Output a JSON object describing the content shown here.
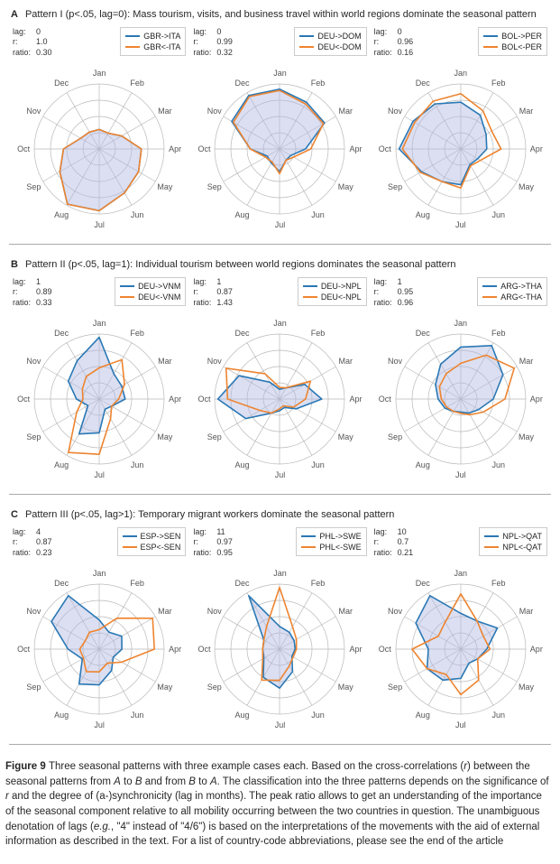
{
  "colors": {
    "series_fwd": "#2a78b5",
    "series_rev": "#ee8430",
    "fill": "rgba(175,185,225,0.45)",
    "grid": "#b9b9b9",
    "spoke": "#b9b9b9",
    "tick_text": "#555555",
    "text": "#262626"
  },
  "months": [
    "Jan",
    "Feb",
    "Mar",
    "Apr",
    "May",
    "Jun",
    "Jul",
    "Aug",
    "Sep",
    "Oct",
    "Nov",
    "Dec"
  ],
  "chart": {
    "outer_radius": 72,
    "label_radius": 84,
    "n_rings": 4,
    "line_width": 1.6
  },
  "rows": [
    {
      "letter": "A",
      "title": "Pattern I (p<.05, lag=0): Mass tourism, visits, and business travel within world regions dominate the seasonal pattern",
      "cells": [
        {
          "stats": {
            "lag": "0",
            "r": "1.0",
            "ratio": "0.30"
          },
          "legend": {
            "fwd": "GBR->ITA",
            "rev": "GBR<-ITA"
          },
          "fwd": [
            0.3,
            0.28,
            0.4,
            0.65,
            0.7,
            0.78,
            0.95,
            0.98,
            0.7,
            0.55,
            0.33,
            0.3
          ],
          "rev": [
            0.3,
            0.28,
            0.4,
            0.65,
            0.7,
            0.78,
            0.95,
            0.98,
            0.7,
            0.55,
            0.33,
            0.3
          ]
        },
        {
          "stats": {
            "lag": "0",
            "r": "0.99",
            "ratio": "0.32"
          },
          "legend": {
            "fwd": "DEU->DOM",
            "rev": "DEU<-DOM"
          },
          "fwd": [
            0.92,
            0.83,
            0.8,
            0.4,
            0.2,
            0.2,
            0.35,
            0.25,
            0.22,
            0.45,
            0.85,
            0.95
          ],
          "rev": [
            0.9,
            0.8,
            0.78,
            0.48,
            0.25,
            0.2,
            0.38,
            0.23,
            0.25,
            0.45,
            0.82,
            0.93
          ]
        },
        {
          "stats": {
            "lag": "0",
            "r": "0.96",
            "ratio": "0.16"
          },
          "legend": {
            "fwd": "BOL->PER",
            "rev": "BOL<-PER"
          },
          "fwd": [
            0.72,
            0.6,
            0.45,
            0.4,
            0.3,
            0.28,
            0.55,
            0.58,
            0.7,
            0.95,
            0.85,
            0.8
          ],
          "rev": [
            0.85,
            0.68,
            0.55,
            0.62,
            0.35,
            0.3,
            0.6,
            0.58,
            0.72,
            0.9,
            0.82,
            0.85
          ]
        }
      ]
    },
    {
      "letter": "B",
      "title": "Pattern II (p<.05, lag=1): Individual tourism between world regions dominates the seasonal pattern",
      "cells": [
        {
          "stats": {
            "lag": "1",
            "r": "0.89",
            "ratio": "0.33"
          },
          "legend": {
            "fwd": "DEU->VNM",
            "rev": "DEU<-VNM"
          },
          "fwd": [
            0.95,
            0.45,
            0.4,
            0.4,
            0.22,
            0.18,
            0.52,
            0.62,
            0.2,
            0.35,
            0.55,
            0.68
          ],
          "rev": [
            0.48,
            0.7,
            0.45,
            0.3,
            0.22,
            0.35,
            0.85,
            0.95,
            0.4,
            0.25,
            0.3,
            0.4
          ]
        },
        {
          "stats": {
            "lag": "1",
            "r": "0.87",
            "ratio": "1.43"
          },
          "legend": {
            "fwd": "DEU->NPL",
            "rev": "DEU<-NPL"
          },
          "fwd": [
            0.15,
            0.2,
            0.45,
            0.65,
            0.3,
            0.15,
            0.18,
            0.25,
            0.6,
            0.95,
            0.72,
            0.3
          ],
          "rev": [
            0.18,
            0.2,
            0.55,
            0.4,
            0.25,
            0.12,
            0.15,
            0.25,
            0.35,
            0.8,
            0.95,
            0.45
          ]
        },
        {
          "stats": {
            "lag": "1",
            "r": "0.95",
            "ratio": "0.96"
          },
          "legend": {
            "fwd": "ARG->THA",
            "rev": "ARG<-THA"
          },
          "fwd": [
            0.8,
            0.95,
            0.75,
            0.5,
            0.32,
            0.25,
            0.2,
            0.22,
            0.28,
            0.35,
            0.45,
            0.62
          ],
          "rev": [
            0.55,
            0.78,
            0.95,
            0.68,
            0.4,
            0.28,
            0.22,
            0.22,
            0.25,
            0.3,
            0.38,
            0.45
          ]
        }
      ]
    },
    {
      "letter": "C",
      "title": "Pattern III (p<.05, lag>1): Temporary migrant workers dominate the seasonal pattern",
      "cells": [
        {
          "stats": {
            "lag": "4",
            "r": "0.87",
            "ratio": "0.23"
          },
          "legend": {
            "fwd": "ESP->SEN",
            "rev": "ESP<-SEN"
          },
          "fwd": [
            0.45,
            0.3,
            0.4,
            0.35,
            0.25,
            0.38,
            0.55,
            0.62,
            0.3,
            0.48,
            0.85,
            0.95
          ],
          "rev": [
            0.3,
            0.55,
            0.95,
            0.85,
            0.4,
            0.25,
            0.35,
            0.4,
            0.28,
            0.3,
            0.25,
            0.3
          ]
        },
        {
          "stats": {
            "lag": "11",
            "r": "0.97",
            "ratio": "0.95"
          },
          "legend": {
            "fwd": "PHL->SWE",
            "rev": "PHL<-SWE"
          },
          "fwd": [
            0.35,
            0.3,
            0.26,
            0.24,
            0.22,
            0.4,
            0.6,
            0.5,
            0.28,
            0.26,
            0.28,
            0.95
          ],
          "rev": [
            0.95,
            0.4,
            0.3,
            0.26,
            0.24,
            0.3,
            0.48,
            0.55,
            0.3,
            0.26,
            0.28,
            0.4
          ]
        },
        {
          "stats": {
            "lag": "10",
            "r": "0.7",
            "ratio": "0.21"
          },
          "legend": {
            "fwd": "NPL->QAT",
            "rev": "NPL<-QAT"
          },
          "fwd": [
            0.55,
            0.5,
            0.65,
            0.4,
            0.3,
            0.25,
            0.45,
            0.55,
            0.6,
            0.5,
            0.8,
            0.95
          ],
          "rev": [
            0.85,
            0.5,
            0.4,
            0.45,
            0.3,
            0.55,
            0.7,
            0.45,
            0.6,
            0.75,
            0.4,
            0.48
          ]
        }
      ]
    }
  ],
  "caption": {
    "label": "Figure 9",
    "text": "Three seasonal patterns with three example cases each. Based on the cross-correlations (r) between the seasonal patterns from A to B and from B to A. The classification into the three patterns depends on the significance of r and the degree of (a-)synchronicity (lag in months). The peak ratio allows to get an understanding of the importance of the seasonal component relative to all mobility occurring between the two countries in question. The unambiguous denotation of lags (e.g., \"4\" instead of \"4/6\") is based on the interpretations of the movements with the aid of external information as described in the text. For a list of country-code abbreviations, please see the end of the article"
  }
}
